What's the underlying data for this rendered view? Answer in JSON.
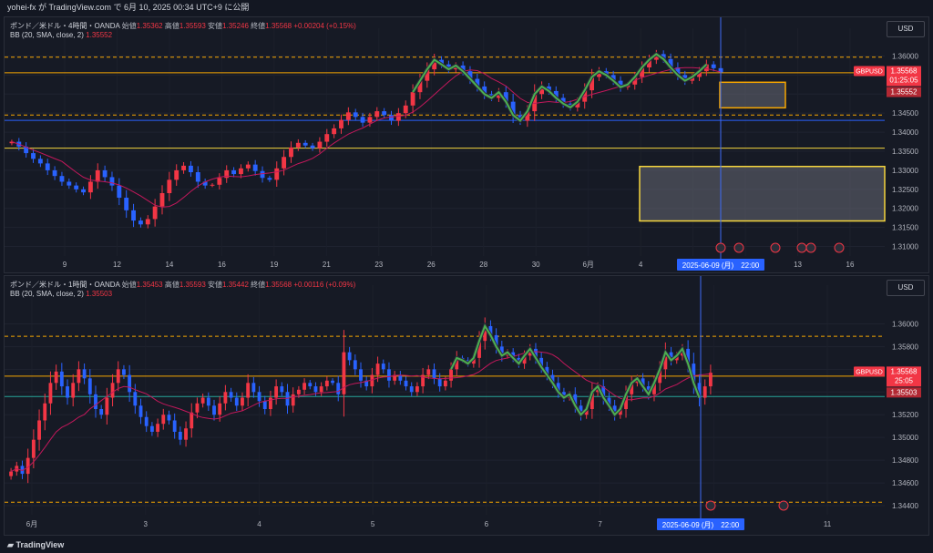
{
  "header": {
    "title": "yohei-fx が TradingView.com で 6月 10, 2025 00:34 UTC+9 に公開"
  },
  "footer": {
    "brand": "TradingView"
  },
  "colors": {
    "bg": "#161a25",
    "up": "#f23645",
    "down": "#2962ff",
    "bb_mid": "#c2185b",
    "orange": "#f7a600",
    "yellow": "#f5d53d",
    "blue_line": "#2962ff",
    "green": "#4caf50",
    "teal": "#26a69a"
  },
  "chart_data": [
    {
      "type": "candlestick",
      "symbol": "GBPUSD",
      "legend": {
        "name": "ポンド／米ドル・4時間・OANDA",
        "open_l": "始値",
        "open": "1.35362",
        "high_l": "高値",
        "high": "1.35593",
        "low_l": "安値",
        "low": "1.35246",
        "close_l": "終値",
        "close": "1.35568",
        "change": "+0.00204 (+0.15%)",
        "bb": "BB (20, SMA, close, 2)",
        "bb_value": "1.35552"
      },
      "currency": "USD",
      "ylim": [
        1.3075,
        1.3625
      ],
      "y_ticks": [
        "1.36000",
        "1.35500",
        "1.35000",
        "1.34500",
        "1.34000",
        "1.33500",
        "1.33000",
        "1.32500",
        "1.32000",
        "1.31500",
        "1.31000"
      ],
      "x_ticks": [
        "9",
        "12",
        "14",
        "16",
        "19",
        "21",
        "23",
        "26",
        "28",
        "30",
        "6月",
        "4",
        "6",
        "9",
        "13",
        "16"
      ],
      "price_labels": {
        "symbol": "GBPUSD",
        "last": "1.35568",
        "countdown": "01:25:05",
        "bb": "1.35552"
      },
      "crosshair_label": "2025-06-09 (月)　22:00",
      "levels": {
        "orange": 1.3556,
        "dashed": [
          1.3597,
          1.3445
        ],
        "blue": 1.3431,
        "yellow": 1.3358
      },
      "boxes": [
        {
          "price_top": 1.3531,
          "price_bottom": 1.3464
        },
        {
          "price_top": 1.331,
          "price_bottom": 1.3167
        }
      ],
      "closes": [
        1.3375,
        1.3362,
        1.3345,
        1.333,
        1.3318,
        1.33,
        1.3285,
        1.327,
        1.326,
        1.325,
        1.3242,
        1.327,
        1.33,
        1.3282,
        1.326,
        1.3228,
        1.3195,
        1.3168,
        1.3158,
        1.3172,
        1.3205,
        1.324,
        1.3275,
        1.33,
        1.3312,
        1.3295,
        1.327,
        1.326,
        1.3262,
        1.328,
        1.33,
        1.329,
        1.3305,
        1.3315,
        1.3298,
        1.328,
        1.3275,
        1.3305,
        1.3335,
        1.336,
        1.3372,
        1.3365,
        1.3358,
        1.3375,
        1.3395,
        1.341,
        1.3432,
        1.3452,
        1.344,
        1.3425,
        1.344,
        1.3455,
        1.3445,
        1.343,
        1.345,
        1.347,
        1.3505,
        1.3535,
        1.3565,
        1.359,
        1.3578,
        1.3565,
        1.3575,
        1.356,
        1.354,
        1.352,
        1.35,
        1.349,
        1.3505,
        1.348,
        1.3445,
        1.343,
        1.3455,
        1.35,
        1.352,
        1.3508,
        1.349,
        1.3475,
        1.3465,
        1.348,
        1.351,
        1.3545,
        1.356,
        1.355,
        1.3535,
        1.3518,
        1.3525,
        1.3545,
        1.357,
        1.359,
        1.3605,
        1.3592,
        1.357,
        1.355,
        1.3535,
        1.3545,
        1.356,
        1.3578,
        1.3568,
        1.3557
      ]
    },
    {
      "type": "candlestick",
      "symbol": "GBPUSD",
      "legend": {
        "name": "ポンド／米ドル・1時間・OANDA",
        "open_l": "始値",
        "open": "1.35453",
        "high_l": "高値",
        "high": "1.35593",
        "low_l": "安値",
        "low": "1.35442",
        "close_l": "終値",
        "close": "1.35568",
        "change": "+0.00116 (+0.09%)",
        "bb": "BB (20, SMA, close, 2)",
        "bb_value": "1.35503"
      },
      "currency": "USD",
      "ylim": [
        1.3432,
        1.3618
      ],
      "y_ticks": [
        "1.36000",
        "1.35800",
        "1.35600",
        "1.35400",
        "1.35200",
        "1.35000",
        "1.34800",
        "1.34600",
        "1.34400"
      ],
      "x_ticks": [
        "6月",
        "3",
        "4",
        "5",
        "6",
        "7",
        "9",
        "11"
      ],
      "price_labels": {
        "symbol": "GBPUSD",
        "last": "1.35568",
        "countdown": "25:05",
        "bb": "1.35503"
      },
      "crosshair_label": "2025-06-09 (月)　22:00",
      "levels": {
        "orange": 1.3554,
        "dashed": [
          1.3589,
          1.3443
        ],
        "teal": 1.3536
      },
      "closes": [
        1.347,
        1.3475,
        1.3468,
        1.3482,
        1.3498,
        1.3515,
        1.353,
        1.3548,
        1.3558,
        1.3545,
        1.3535,
        1.3548,
        1.356,
        1.3552,
        1.3538,
        1.3525,
        1.352,
        1.3535,
        1.3548,
        1.356,
        1.3555,
        1.354,
        1.3528,
        1.3518,
        1.351,
        1.3505,
        1.3512,
        1.352,
        1.3515,
        1.3505,
        1.3498,
        1.3508,
        1.3522,
        1.353,
        1.3535,
        1.3528,
        1.352,
        1.353,
        1.354,
        1.3535,
        1.3528,
        1.3535,
        1.3548,
        1.354,
        1.3532,
        1.3525,
        1.3535,
        1.3545,
        1.354,
        1.3528,
        1.3538,
        1.3542,
        1.3548,
        1.3545,
        1.354,
        1.3545,
        1.355,
        1.3548,
        1.3538,
        1.3575,
        1.3568,
        1.356,
        1.355,
        1.3545,
        1.3555,
        1.3565,
        1.356,
        1.355,
        1.3555,
        1.355,
        1.3545,
        1.354,
        1.3545,
        1.3555,
        1.356,
        1.3552,
        1.3545,
        1.355,
        1.356,
        1.357,
        1.3568,
        1.3565,
        1.357,
        1.3585,
        1.3598,
        1.359,
        1.358,
        1.3572,
        1.3575,
        1.357,
        1.3565,
        1.3572,
        1.3578,
        1.357,
        1.3562,
        1.3555,
        1.3548,
        1.354,
        1.3535,
        1.3538,
        1.3528,
        1.352,
        1.3525,
        1.354,
        1.3545,
        1.3535,
        1.3528,
        1.352,
        1.3525,
        1.3538,
        1.3548,
        1.3552,
        1.3545,
        1.3538,
        1.3548,
        1.356,
        1.3575,
        1.3568,
        1.3572,
        1.3578,
        1.3565,
        1.3548,
        1.3535,
        1.3545,
        1.3557
      ]
    }
  ]
}
